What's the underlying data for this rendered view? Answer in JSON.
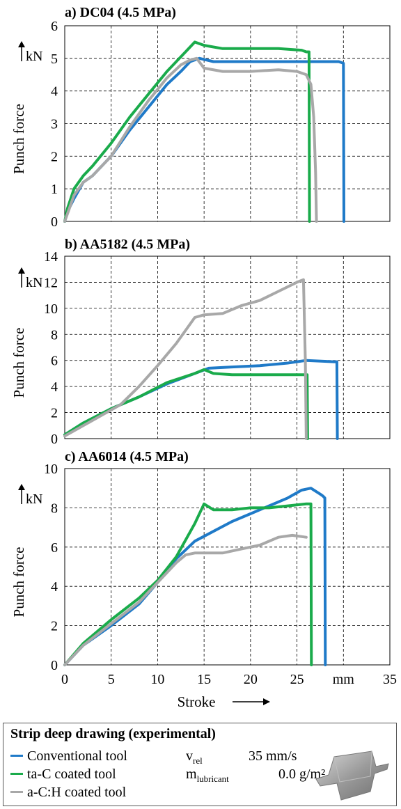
{
  "chart_data": [
    {
      "type": "line",
      "title": "a) DC04 (4.5 MPa)",
      "ylabel": "Punch force",
      "yunit": "kN",
      "xlim": [
        0,
        35
      ],
      "ylim": [
        0,
        6
      ],
      "yticks": [
        0,
        1,
        2,
        3,
        4,
        5,
        6
      ],
      "grid": true,
      "series": [
        {
          "name": "Conventional tool",
          "color": "#1f7ac8",
          "x": [
            0,
            0.3,
            1,
            2,
            3,
            5,
            7,
            9,
            11,
            12.5,
            13.5,
            14.5,
            16,
            20,
            24,
            26,
            28,
            29.5,
            30,
            30.05
          ],
          "y": [
            0,
            0.3,
            0.7,
            1.2,
            1.4,
            2.0,
            2.8,
            3.5,
            4.2,
            4.6,
            4.9,
            5.0,
            4.9,
            4.9,
            4.9,
            4.9,
            4.9,
            4.9,
            4.85,
            0
          ]
        },
        {
          "name": "ta-C coated tool",
          "color": "#1aab4b",
          "x": [
            0,
            0.3,
            1,
            2,
            3,
            5,
            7,
            9,
            11,
            13,
            14,
            15,
            17,
            20,
            23,
            25.5,
            26,
            26.3,
            26.35
          ],
          "y": [
            0,
            0.4,
            1.0,
            1.4,
            1.7,
            2.4,
            3.2,
            3.9,
            4.6,
            5.2,
            5.5,
            5.4,
            5.3,
            5.3,
            5.3,
            5.25,
            5.2,
            5.2,
            0
          ]
        },
        {
          "name": "a-C:H coated tool",
          "color": "#a8a8a8",
          "x": [
            0,
            0.5,
            1,
            2,
            3,
            5,
            7,
            9,
            11,
            12.5,
            13.5,
            14.2,
            15,
            17,
            20,
            23,
            25,
            26,
            26.5,
            26.8,
            27,
            27.1
          ],
          "y": [
            0,
            0.4,
            0.8,
            1.2,
            1.4,
            2.0,
            2.9,
            3.7,
            4.4,
            4.8,
            4.95,
            5.0,
            4.7,
            4.6,
            4.6,
            4.65,
            4.6,
            4.5,
            4.2,
            3.2,
            1.5,
            0
          ]
        }
      ]
    },
    {
      "type": "line",
      "title": "b) AA5182 (4.5 MPa)",
      "ylabel": "Punch force",
      "yunit": "kN",
      "xlim": [
        0,
        35
      ],
      "ylim": [
        0,
        14
      ],
      "yticks": [
        0,
        2,
        4,
        6,
        8,
        10,
        12,
        14
      ],
      "grid": true,
      "series": [
        {
          "name": "Conventional tool",
          "color": "#1f7ac8",
          "x": [
            0,
            2,
            5,
            8,
            11,
            14,
            15.5,
            18,
            21,
            24,
            26,
            29,
            29.3,
            29.35
          ],
          "y": [
            0.3,
            1.2,
            2.3,
            3.2,
            4.2,
            5.0,
            5.4,
            5.5,
            5.6,
            5.8,
            6.0,
            5.9,
            5.9,
            0
          ]
        },
        {
          "name": "ta-C coated tool",
          "color": "#1aab4b",
          "x": [
            0,
            2,
            5,
            8,
            11,
            14,
            15,
            16,
            18,
            21,
            24,
            26,
            26.1,
            26.15
          ],
          "y": [
            0.3,
            1.2,
            2.3,
            3.2,
            4.3,
            5.0,
            5.3,
            5.0,
            4.9,
            4.9,
            4.9,
            4.9,
            4.9,
            0
          ]
        },
        {
          "name": "a-C:H coated tool",
          "color": "#a8a8a8",
          "x": [
            0,
            2,
            4,
            6,
            8,
            10,
            12,
            14,
            15,
            17,
            19,
            21,
            23,
            25,
            25.7,
            25.9,
            26
          ],
          "y": [
            0.2,
            1.0,
            1.8,
            2.6,
            4.0,
            5.6,
            7.3,
            9.3,
            9.5,
            9.6,
            10.2,
            10.6,
            11.3,
            12.0,
            12.2,
            6.0,
            0
          ]
        }
      ]
    },
    {
      "type": "line",
      "title": "c) AA6014 (4.5 MPa)",
      "ylabel": "Punch force",
      "yunit": "kN",
      "xlabel": "Stroke",
      "xunit": "mm",
      "xlim": [
        0,
        35
      ],
      "xticks": [
        0,
        5,
        10,
        15,
        20,
        25,
        35
      ],
      "ylim": [
        0,
        10
      ],
      "yticks": [
        0,
        2,
        4,
        6,
        8,
        10
      ],
      "grid": true,
      "series": [
        {
          "name": "Conventional tool",
          "color": "#1f7ac8",
          "x": [
            0,
            2,
            5,
            8,
            10,
            12,
            14,
            16,
            18,
            20,
            22,
            24,
            25.5,
            26.5,
            27.5,
            27.8,
            28.0,
            28.05
          ],
          "y": [
            0,
            1.0,
            2.0,
            3.1,
            4.2,
            5.4,
            6.3,
            6.8,
            7.3,
            7.7,
            8.1,
            8.5,
            8.9,
            9.0,
            8.7,
            8.6,
            8.5,
            0
          ]
        },
        {
          "name": "ta-C coated tool",
          "color": "#1aab4b",
          "x": [
            0,
            2,
            5,
            8,
            10,
            12,
            14,
            15,
            16,
            18,
            20,
            22,
            24,
            26,
            26.5,
            26.55
          ],
          "y": [
            0,
            1.1,
            2.3,
            3.4,
            4.3,
            5.5,
            7.2,
            8.2,
            7.9,
            7.9,
            8.0,
            8.0,
            8.1,
            8.2,
            8.2,
            0
          ]
        },
        {
          "name": "a-C:H coated tool",
          "color": "#a8a8a8",
          "x": [
            0,
            2,
            5,
            8,
            10,
            12,
            13,
            14,
            15,
            17,
            19,
            21,
            23,
            24.5,
            26
          ],
          "y": [
            0,
            1.0,
            2.1,
            3.2,
            4.2,
            5.2,
            5.6,
            5.7,
            5.7,
            5.7,
            5.9,
            6.1,
            6.5,
            6.6,
            6.5
          ]
        }
      ]
    }
  ],
  "legend": {
    "title": "Strip deep drawing (experimental)",
    "items": [
      {
        "label": "Conventional tool",
        "color": "#1f7ac8"
      },
      {
        "label": "ta-C coated tool",
        "color": "#1aab4b"
      },
      {
        "label": "a-C:H coated tool",
        "color": "#a8a8a8"
      }
    ]
  },
  "parameters": {
    "v_symbol": "v",
    "v_sub": "rel",
    "v_value": "35 mm/s",
    "m_symbol": "m",
    "m_sub": "lubricant",
    "m_value": "0.0 g/m²"
  }
}
